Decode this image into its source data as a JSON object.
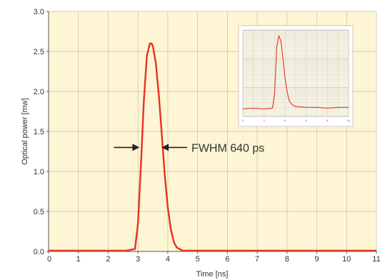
{
  "chart_data": {
    "type": "line",
    "xlabel": "Time [ns]",
    "ylabel": "Optical power [mw]",
    "xlim": [
      0,
      11
    ],
    "ylim": [
      0,
      3.0
    ],
    "x_ticks": [
      "0",
      "1",
      "2",
      "3",
      "4",
      "5",
      "6",
      "7",
      "8",
      "9",
      "10",
      "11"
    ],
    "y_ticks": [
      "0.0",
      "0.5",
      "1.0",
      "1.5",
      "2.0",
      "2.5",
      "3.0"
    ],
    "grid": true,
    "colors": {
      "background": "#fdf5d4",
      "series": "#e8321e",
      "grid": "#c7c2a8",
      "axis": "#555555",
      "inset_background": "#f4f1e3"
    },
    "series": [
      {
        "x": [
          0,
          1,
          2,
          2.6,
          2.9,
          3.0,
          3.1,
          3.2,
          3.3,
          3.4,
          3.45,
          3.5,
          3.6,
          3.7,
          3.8,
          3.9,
          4.0,
          4.1,
          4.2,
          4.3,
          4.5,
          5,
          6,
          7,
          8,
          9,
          10,
          11
        ],
        "y": [
          0.01,
          0.01,
          0.01,
          0.01,
          0.03,
          0.35,
          1.1,
          1.9,
          2.45,
          2.6,
          2.6,
          2.57,
          2.35,
          1.95,
          1.45,
          0.95,
          0.55,
          0.28,
          0.12,
          0.05,
          0.01,
          0.01,
          0.01,
          0.01,
          0.01,
          0.01,
          0.01,
          0.01
        ]
      }
    ],
    "annotations": [
      {
        "text": "FWHM 640 ps",
        "y": 1.3,
        "x_left": 3.1,
        "x_right": 3.74
      }
    ],
    "inset": {
      "xlim": [
        0,
        10
      ],
      "x_ticks": [
        "0",
        "2",
        "4",
        "6",
        "8",
        "10"
      ],
      "log_y": true,
      "series": {
        "x": [
          0,
          1,
          2,
          2.8,
          3.0,
          3.2,
          3.4,
          3.6,
          3.8,
          4.0,
          4.2,
          4.4,
          4.7,
          5.0,
          6,
          7,
          8,
          9,
          10
        ],
        "y_norm": [
          0.06,
          0.07,
          0.06,
          0.07,
          0.25,
          0.85,
          1.0,
          0.93,
          0.7,
          0.45,
          0.27,
          0.16,
          0.11,
          0.09,
          0.08,
          0.08,
          0.07,
          0.08,
          0.08
        ]
      }
    }
  }
}
